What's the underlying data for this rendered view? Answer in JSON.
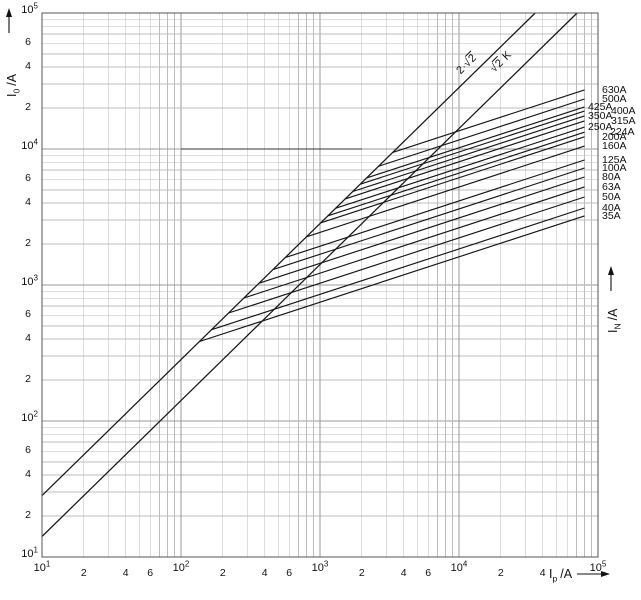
{
  "chart_data": {
    "type": "line",
    "scale": "log-log",
    "grid": "on",
    "x_axis": {
      "title": {
        "sym": "I",
        "sub": "p",
        "unit": "/A"
      },
      "min": 10,
      "max": 100000,
      "major_exponents": [
        1,
        2,
        3,
        4,
        5
      ],
      "minor_labels": [
        [
          "2",
          "4",
          "6"
        ],
        [
          "2",
          "4",
          "6"
        ],
        [
          "2",
          "4",
          "6"
        ],
        [
          "2",
          "4"
        ]
      ]
    },
    "y_axis": {
      "title": {
        "sym": "I",
        "sub": "0",
        "unit": "/A"
      },
      "min": 10,
      "max": 100000,
      "major_exponents": [
        1,
        2,
        3,
        4,
        5
      ],
      "minor_labels": [
        [
          "2",
          "4",
          "6"
        ],
        [
          "2",
          "4",
          "6"
        ],
        [
          "2",
          "4",
          "6"
        ],
        [
          "2",
          "4",
          "6"
        ]
      ]
    },
    "right_axis_title": {
      "sym": "I",
      "sub": "N",
      "unit": "/A"
    },
    "reference_lines": [
      {
        "label": "2·√2",
        "factor": 2.828
      },
      {
        "label": "√2 K",
        "factor": 1.414
      }
    ],
    "fuse_curves_meta": {
      "slope_loglog": 0.3333,
      "ip_end": 80000,
      "branch_factor": 2.828
    },
    "fuse_curves": [
      {
        "label": "630A",
        "rating": 630,
        "i0_end": 27200,
        "label_dx": 0
      },
      {
        "label": "500A",
        "rating": 500,
        "i0_end": 23300,
        "label_dx": 0
      },
      {
        "label": "425A",
        "rating": 425,
        "i0_end": 20400,
        "label_dx": -14
      },
      {
        "label": "400A",
        "rating": 400,
        "i0_end": 19000,
        "label_dx": 9
      },
      {
        "label": "350A",
        "rating": 350,
        "i0_end": 17500,
        "label_dx": -14
      },
      {
        "label": "315A",
        "rating": 315,
        "i0_end": 16100,
        "label_dx": 9
      },
      {
        "label": "250A",
        "rating": 250,
        "i0_end": 14500,
        "label_dx": -14
      },
      {
        "label": "224A",
        "rating": 224,
        "i0_end": 13300,
        "label_dx": 8
      },
      {
        "label": "200A",
        "rating": 200,
        "i0_end": 12300,
        "label_dx": 0
      },
      {
        "label": "160A",
        "rating": 160,
        "i0_end": 10500,
        "label_dx": 0
      },
      {
        "label": "125A",
        "rating": 125,
        "i0_end": 8300,
        "label_dx": 0
      },
      {
        "label": "100A",
        "rating": 100,
        "i0_end": 7250,
        "label_dx": 0
      },
      {
        "label": "80A",
        "rating": 80,
        "i0_end": 6220,
        "label_dx": 0
      },
      {
        "label": "63A",
        "rating": 63,
        "i0_end": 5260,
        "label_dx": 0
      },
      {
        "label": "50A",
        "rating": 50,
        "i0_end": 4440,
        "label_dx": 0
      },
      {
        "label": "40A",
        "rating": 40,
        "i0_end": 3680,
        "label_dx": 0
      },
      {
        "label": "35A",
        "rating": 35,
        "i0_end": 3220,
        "label_dx": 0
      }
    ],
    "highlight_segment": {
      "i0": 10000,
      "ip_from": 100,
      "ip_to": 2000
    },
    "colors": {
      "curve": "#161616",
      "grid_minor": "#bcbcbc",
      "grid_major": "#999999",
      "frame": "#555555",
      "text": "#111111",
      "background": "#ffffff"
    }
  }
}
